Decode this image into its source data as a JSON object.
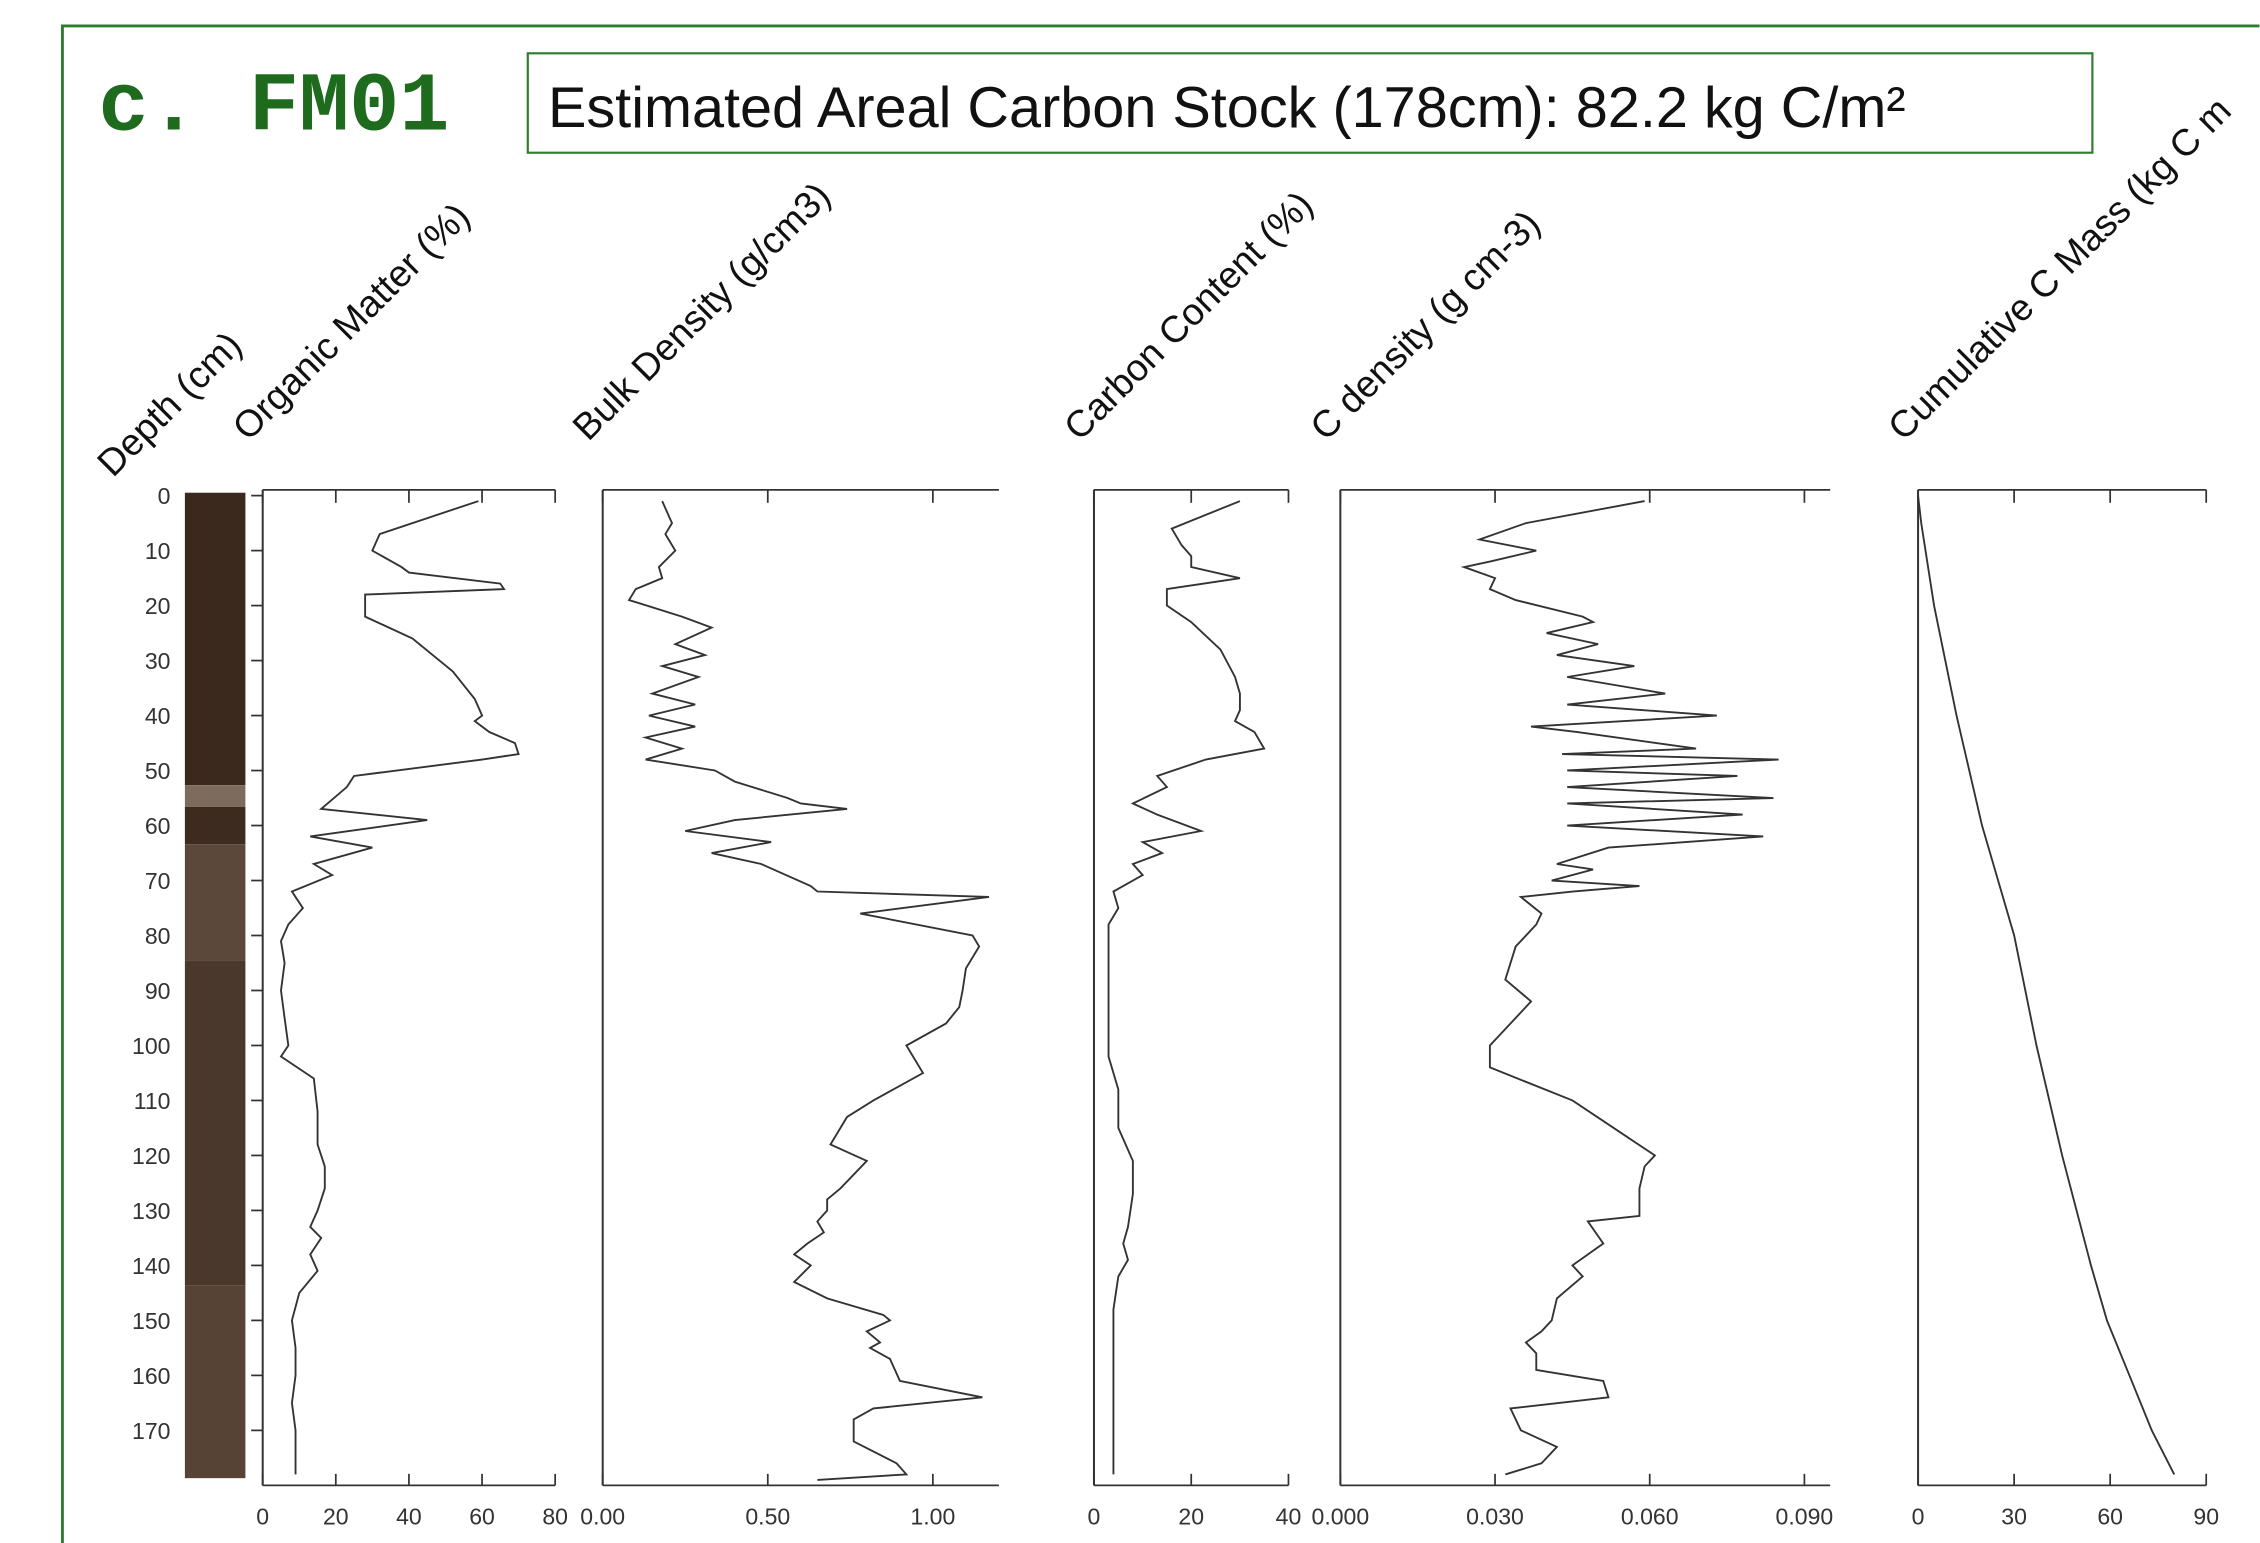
{
  "title": "c. FM01",
  "subtitle": "Estimated Areal Carbon Stock (178cm): 82.2 kg C/m²",
  "depth_axis": {
    "label": "Depth (cm)",
    "ylim": [
      0,
      180
    ],
    "yticks": [
      0,
      10,
      20,
      30,
      40,
      50,
      60,
      70,
      80,
      90,
      100,
      110,
      120,
      130,
      140,
      150,
      160,
      170
    ]
  },
  "chart_data": [
    {
      "type": "line",
      "xlabel": "Organic Matter (%)",
      "xlim": [
        0,
        80
      ],
      "xticks": [
        0,
        20,
        40,
        60,
        80
      ],
      "color": "#333333",
      "depth": [
        1,
        7,
        10,
        13,
        14,
        16,
        17,
        18,
        22,
        26,
        32,
        37,
        40,
        41,
        43,
        45,
        47,
        48,
        51,
        53,
        57,
        59,
        62,
        64,
        67,
        69,
        72,
        75,
        78,
        81,
        85,
        90,
        95,
        100,
        102,
        106,
        112,
        118,
        122,
        126,
        130,
        133,
        135,
        138,
        141,
        145,
        150,
        155,
        160,
        165,
        170,
        175,
        178
      ],
      "values": [
        59,
        32,
        30,
        38,
        40,
        65,
        66,
        28,
        28,
        41,
        52,
        58,
        60,
        58,
        62,
        69,
        70,
        60,
        25,
        23,
        16,
        45,
        13,
        30,
        14,
        19,
        8,
        11,
        7,
        5,
        6,
        5,
        6,
        7,
        5,
        14,
        15,
        15,
        17,
        17,
        15,
        13,
        16,
        13,
        15,
        10,
        8,
        9,
        9,
        8,
        9,
        9,
        9
      ]
    },
    {
      "type": "line",
      "xlabel": "Bulk Density (g/cm3)",
      "xlim": [
        0,
        1.2
      ],
      "xticks": [
        {
          "value": 0,
          "label": "0.00"
        },
        {
          "value": 0.5,
          "label": "0.50"
        },
        {
          "value": 1,
          "label": "1.00"
        }
      ],
      "color": "#333333",
      "depth": [
        1,
        5,
        7,
        10,
        13,
        15,
        17,
        19,
        22,
        24,
        27,
        29,
        31,
        33,
        36,
        38,
        40,
        42,
        44,
        46,
        48,
        50,
        52,
        55,
        56,
        57,
        59,
        61,
        63,
        65,
        67,
        71,
        72,
        73,
        76,
        80,
        82,
        86,
        90,
        93,
        96,
        100,
        105,
        110,
        113,
        118,
        121,
        126,
        128,
        130,
        132,
        134,
        136,
        138,
        140,
        143,
        146,
        149,
        150,
        152,
        154,
        155,
        157,
        161,
        164,
        166,
        168,
        172,
        176,
        178,
        179
      ],
      "values": [
        0.18,
        0.21,
        0.19,
        0.22,
        0.17,
        0.18,
        0.1,
        0.08,
        0.24,
        0.33,
        0.22,
        0.31,
        0.18,
        0.29,
        0.15,
        0.28,
        0.14,
        0.28,
        0.13,
        0.24,
        0.13,
        0.34,
        0.4,
        0.56,
        0.6,
        0.74,
        0.4,
        0.25,
        0.51,
        0.33,
        0.48,
        0.63,
        0.65,
        1.17,
        0.78,
        1.12,
        1.14,
        1.1,
        1.09,
        1.08,
        1.04,
        0.92,
        0.97,
        0.82,
        0.74,
        0.69,
        0.8,
        0.72,
        0.68,
        0.68,
        0.65,
        0.67,
        0.62,
        0.58,
        0.63,
        0.58,
        0.68,
        0.85,
        0.87,
        0.8,
        0.84,
        0.81,
        0.87,
        0.9,
        1.15,
        0.82,
        0.76,
        0.76,
        0.89,
        0.92,
        0.65
      ]
    },
    {
      "type": "line",
      "xlabel": "Carbon Content (%)",
      "xlim": [
        0,
        40
      ],
      "xticks": [
        0,
        20,
        40
      ],
      "color": "#333333",
      "depth": [
        1,
        6,
        9,
        11,
        13,
        15,
        17,
        20,
        23,
        28,
        33,
        36,
        39,
        41,
        43,
        46,
        48,
        51,
        53,
        56,
        58,
        61,
        63,
        65,
        67,
        69,
        72,
        75,
        78,
        82,
        86,
        92,
        98,
        102,
        108,
        115,
        121,
        127,
        133,
        136,
        139,
        142,
        148,
        155,
        161,
        168,
        175,
        178
      ],
      "values": [
        30,
        16,
        18,
        20,
        20,
        30,
        15,
        15,
        20,
        26,
        29,
        30,
        30,
        29,
        33,
        35,
        23,
        13,
        15,
        8,
        13,
        22,
        10,
        14,
        8,
        10,
        4,
        5,
        3,
        3,
        3,
        3,
        3,
        3,
        5,
        5,
        8,
        8,
        7,
        6,
        7,
        5,
        4,
        4,
        4,
        4,
        4,
        4
      ]
    },
    {
      "type": "line",
      "xlabel": "C density (g cm-3)",
      "xlim": [
        0,
        0.095
      ],
      "xticks": [
        {
          "value": 0,
          "label": "0.000"
        },
        {
          "value": 0.03,
          "label": "0.030"
        },
        {
          "value": 0.06,
          "label": "0.060"
        },
        {
          "value": 0.09,
          "label": "0.090"
        }
      ],
      "color": "#333333",
      "depth": [
        1,
        5,
        8,
        10,
        12,
        13,
        15,
        17,
        19,
        22,
        23,
        25,
        27,
        29,
        31,
        33,
        36,
        38,
        40,
        42,
        43,
        46,
        47,
        48,
        50,
        51,
        53,
        55,
        56,
        58,
        60,
        62,
        64,
        67,
        68,
        70,
        71,
        72,
        73,
        76,
        78,
        82,
        88,
        92,
        96,
        100,
        104,
        110,
        115,
        120,
        122,
        126,
        131,
        132,
        136,
        140,
        142,
        146,
        150,
        152,
        154,
        156,
        159,
        161,
        164,
        166,
        170,
        173,
        176,
        178
      ],
      "values": [
        0.059,
        0.036,
        0.027,
        0.038,
        0.029,
        0.024,
        0.03,
        0.029,
        0.034,
        0.047,
        0.049,
        0.04,
        0.05,
        0.042,
        0.057,
        0.044,
        0.063,
        0.044,
        0.073,
        0.037,
        0.046,
        0.069,
        0.043,
        0.085,
        0.044,
        0.077,
        0.044,
        0.084,
        0.044,
        0.078,
        0.044,
        0.082,
        0.052,
        0.042,
        0.049,
        0.041,
        0.058,
        0.045,
        0.035,
        0.039,
        0.038,
        0.034,
        0.032,
        0.037,
        0.033,
        0.029,
        0.029,
        0.045,
        0.053,
        0.061,
        0.059,
        0.058,
        0.058,
        0.048,
        0.051,
        0.045,
        0.047,
        0.042,
        0.041,
        0.039,
        0.036,
        0.038,
        0.038,
        0.051,
        0.052,
        0.033,
        0.035,
        0.042,
        0.039,
        0.032
      ]
    },
    {
      "type": "line",
      "xlabel": "Cumulative C Mass (kg C m",
      "xlim": [
        0,
        90
      ],
      "xticks": [
        0,
        30,
        60,
        90
      ],
      "color": "#333333",
      "depth": [
        0,
        5,
        20,
        40,
        60,
        80,
        100,
        120,
        140,
        150,
        160,
        170,
        178
      ],
      "values": [
        0,
        1,
        5,
        12,
        20,
        30,
        37,
        45,
        54,
        59,
        66,
        73,
        80
      ]
    }
  ]
}
